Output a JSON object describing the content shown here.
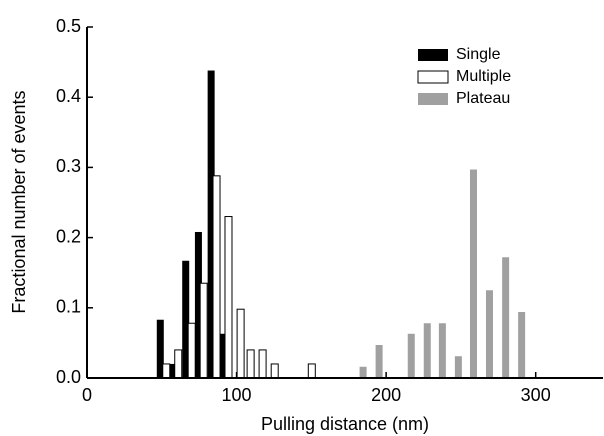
{
  "chart_data": {
    "type": "bar",
    "xlabel": "Pulling distance (nm)",
    "ylabel": "Fractional number of events",
    "xlim": [
      0,
      345
    ],
    "ylim": [
      0,
      0.5
    ],
    "xticks": [
      0,
      100,
      200,
      300
    ],
    "yticks": [
      {
        "value": 0,
        "label": "0.0"
      },
      0.1,
      0.2,
      0.3,
      0.4,
      0.5
    ],
    "legend": "top-right",
    "series": [
      {
        "name": "Single",
        "color": "#000000",
        "x": [
          49,
          57,
          66,
          74.5,
          83,
          90
        ],
        "values": [
          0.083,
          0.02,
          0.167,
          0.208,
          0.438,
          0.063
        ]
      },
      {
        "name": "Multiple",
        "color": "#ffffff",
        "x": [
          53,
          61,
          70,
          78,
          86.6,
          94.6,
          102.7,
          109.4,
          117.4,
          125.5,
          150.3
        ],
        "values": [
          0.02,
          0.04,
          0.078,
          0.135,
          0.288,
          0.23,
          0.098,
          0.04,
          0.04,
          0.02,
          0.02
        ]
      },
      {
        "name": "Plateau",
        "color": "#a0a0a0",
        "x": [
          184.6,
          195.3,
          216.8,
          227.5,
          237.6,
          248.3,
          258.4,
          269.1,
          279.9,
          290.6
        ],
        "values": [
          0.016,
          0.047,
          0.063,
          0.078,
          0.078,
          0.031,
          0.297,
          0.125,
          0.172,
          0.094
        ]
      }
    ]
  }
}
